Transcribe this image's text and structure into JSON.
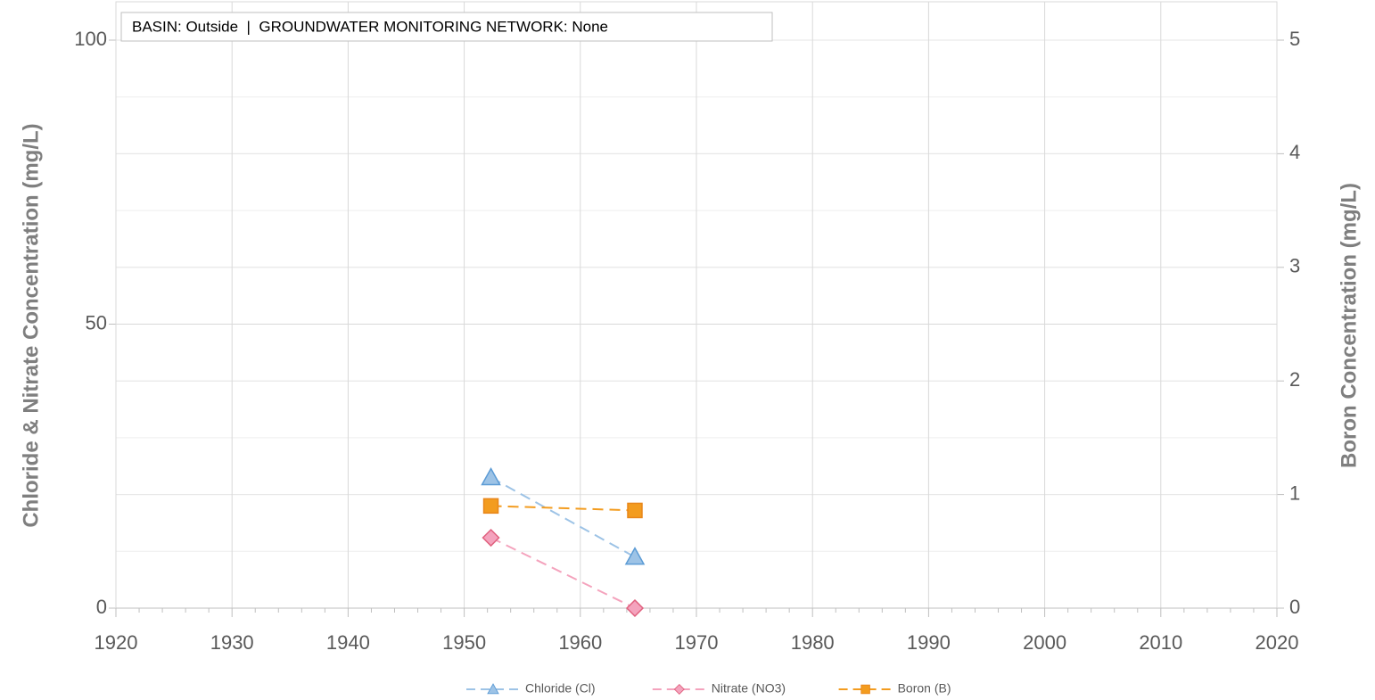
{
  "chart_data": {
    "type": "line",
    "annotation": "BASIN: Outside  |  GROUNDWATER MONITORING NETWORK: None",
    "y_label": "Chloride & Nitrate Concentration (mg/L)",
    "y2_label": "Boron Concentration (mg/L)",
    "xlim": [
      1920,
      2020
    ],
    "xticks": [
      1920,
      1930,
      1940,
      1950,
      1960,
      1970,
      1980,
      1990,
      2000,
      2010,
      2020
    ],
    "ylim": [
      0,
      100
    ],
    "yticks": [
      0,
      50,
      100
    ],
    "y_minor_ticks": [
      10,
      20,
      30,
      40,
      60,
      70,
      80,
      90
    ],
    "y2lim": [
      0,
      5
    ],
    "y2ticks": [
      0,
      1,
      2,
      3,
      4,
      5
    ],
    "grid": true,
    "legend": "bottom",
    "series": [
      {
        "name": "Chloride (Cl)",
        "color": "#9dc3e6",
        "marker": "triangle",
        "x": [
          1952.3,
          1964.7
        ],
        "values": [
          23,
          9
        ]
      },
      {
        "name": "Nitrate (NO3)",
        "color": "#f4a3bd",
        "marker": "diamond",
        "x": [
          1952.3,
          1964.7
        ],
        "values": [
          12.4,
          0
        ]
      },
      {
        "name": "Boron (B)",
        "color": "#f39c1f",
        "marker": "square",
        "axis": "y2",
        "x": [
          1952.3,
          1964.7
        ],
        "values": [
          0.9,
          0.86
        ]
      }
    ]
  }
}
